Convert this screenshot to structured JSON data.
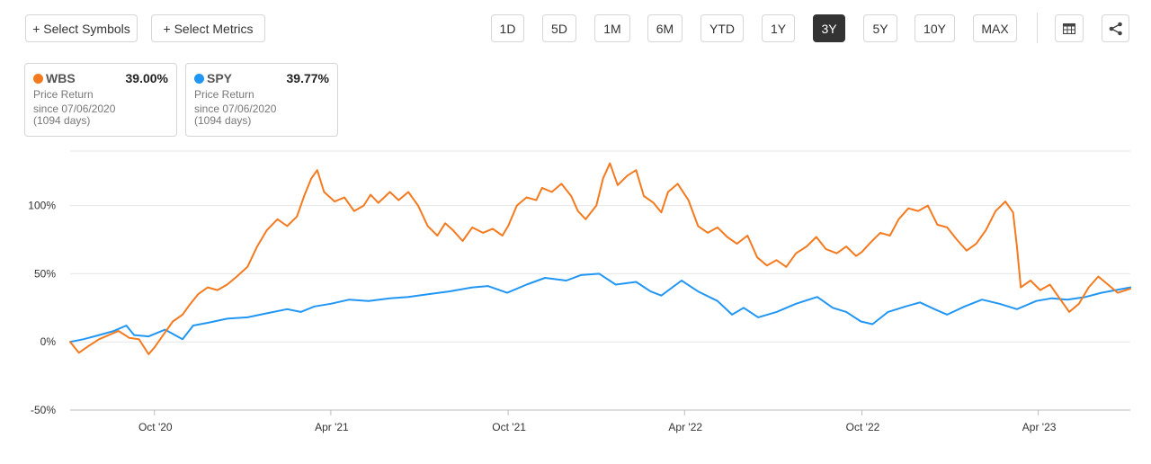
{
  "toolbar": {
    "select_symbols_label": "+ Select Symbols",
    "select_metrics_label": "+ Select Metrics",
    "ranges": [
      "1D",
      "5D",
      "1M",
      "6M",
      "YTD",
      "1Y",
      "3Y",
      "5Y",
      "10Y",
      "MAX"
    ],
    "active_range": "3Y",
    "table_icon": "table-icon",
    "share_icon": "share-icon"
  },
  "cards": [
    {
      "symbol": "WBS",
      "value": "39.00%",
      "metric": "Price Return",
      "since": "since 07/06/2020",
      "days": "(1094 days)",
      "color": "#f47a1f"
    },
    {
      "symbol": "SPY",
      "value": "39.77%",
      "metric": "Price Return",
      "since": "since 07/06/2020",
      "days": "(1094 days)",
      "color": "#2196f3"
    }
  ],
  "chart_data": {
    "type": "line",
    "x_range": [
      "2020-07-06",
      "2023-07-05"
    ],
    "ylim": [
      -50,
      140
    ],
    "y_ticks": [
      -50,
      0,
      50,
      100
    ],
    "y_tick_labels": [
      "-50%",
      "0%",
      "50%",
      "100%"
    ],
    "x_ticks": [
      "2020-10-01",
      "2021-04-01",
      "2021-10-01",
      "2022-04-01",
      "2022-10-01",
      "2023-04-01"
    ],
    "x_tick_labels": [
      "Oct '20",
      "Apr '21",
      "Oct '21",
      "Apr '22",
      "Oct '22",
      "Apr '23"
    ],
    "grid": "horizontal",
    "series": [
      {
        "name": "WBS",
        "color": "#f47a1f",
        "points": [
          [
            "2020-07-06",
            0
          ],
          [
            "2020-07-15",
            -8
          ],
          [
            "2020-07-25",
            -3
          ],
          [
            "2020-08-05",
            2
          ],
          [
            "2020-08-15",
            5
          ],
          [
            "2020-08-25",
            8
          ],
          [
            "2020-09-05",
            3
          ],
          [
            "2020-09-15",
            2
          ],
          [
            "2020-09-25",
            -9
          ],
          [
            "2020-10-01",
            -4
          ],
          [
            "2020-10-10",
            5
          ],
          [
            "2020-10-20",
            15
          ],
          [
            "2020-10-30",
            20
          ],
          [
            "2020-11-06",
            27
          ],
          [
            "2020-11-15",
            35
          ],
          [
            "2020-11-25",
            40
          ],
          [
            "2020-12-05",
            38
          ],
          [
            "2020-12-15",
            42
          ],
          [
            "2020-12-25",
            48
          ],
          [
            "2021-01-05",
            55
          ],
          [
            "2021-01-15",
            70
          ],
          [
            "2021-01-25",
            82
          ],
          [
            "2021-02-05",
            90
          ],
          [
            "2021-02-15",
            85
          ],
          [
            "2021-02-25",
            92
          ],
          [
            "2021-03-05",
            108
          ],
          [
            "2021-03-12",
            120
          ],
          [
            "2021-03-18",
            126
          ],
          [
            "2021-03-25",
            110
          ],
          [
            "2021-04-05",
            103
          ],
          [
            "2021-04-15",
            106
          ],
          [
            "2021-04-25",
            96
          ],
          [
            "2021-05-05",
            100
          ],
          [
            "2021-05-12",
            108
          ],
          [
            "2021-05-20",
            102
          ],
          [
            "2021-06-01",
            110
          ],
          [
            "2021-06-10",
            104
          ],
          [
            "2021-06-20",
            110
          ],
          [
            "2021-06-30",
            100
          ],
          [
            "2021-07-10",
            85
          ],
          [
            "2021-07-20",
            78
          ],
          [
            "2021-07-28",
            87
          ],
          [
            "2021-08-05",
            82
          ],
          [
            "2021-08-15",
            74
          ],
          [
            "2021-08-25",
            84
          ],
          [
            "2021-09-05",
            80
          ],
          [
            "2021-09-15",
            83
          ],
          [
            "2021-09-25",
            78
          ],
          [
            "2021-10-01",
            85
          ],
          [
            "2021-10-10",
            100
          ],
          [
            "2021-10-20",
            106
          ],
          [
            "2021-10-30",
            104
          ],
          [
            "2021-11-05",
            113
          ],
          [
            "2021-11-15",
            110
          ],
          [
            "2021-11-25",
            116
          ],
          [
            "2021-12-05",
            107
          ],
          [
            "2021-12-12",
            96
          ],
          [
            "2021-12-20",
            90
          ],
          [
            "2021-12-31",
            100
          ],
          [
            "2022-01-07",
            120
          ],
          [
            "2022-01-14",
            131
          ],
          [
            "2022-01-22",
            115
          ],
          [
            "2022-02-01",
            122
          ],
          [
            "2022-02-10",
            126
          ],
          [
            "2022-02-18",
            107
          ],
          [
            "2022-02-28",
            102
          ],
          [
            "2022-03-08",
            95
          ],
          [
            "2022-03-15",
            110
          ],
          [
            "2022-03-25",
            116
          ],
          [
            "2022-04-05",
            104
          ],
          [
            "2022-04-15",
            85
          ],
          [
            "2022-04-25",
            80
          ],
          [
            "2022-05-05",
            84
          ],
          [
            "2022-05-15",
            77
          ],
          [
            "2022-05-25",
            72
          ],
          [
            "2022-06-05",
            78
          ],
          [
            "2022-06-15",
            62
          ],
          [
            "2022-06-25",
            56
          ],
          [
            "2022-07-05",
            60
          ],
          [
            "2022-07-15",
            55
          ],
          [
            "2022-07-25",
            65
          ],
          [
            "2022-08-05",
            70
          ],
          [
            "2022-08-15",
            77
          ],
          [
            "2022-08-25",
            68
          ],
          [
            "2022-09-05",
            65
          ],
          [
            "2022-09-15",
            70
          ],
          [
            "2022-09-25",
            63
          ],
          [
            "2022-10-01",
            66
          ],
          [
            "2022-10-10",
            73
          ],
          [
            "2022-10-20",
            80
          ],
          [
            "2022-10-30",
            78
          ],
          [
            "2022-11-08",
            90
          ],
          [
            "2022-11-18",
            98
          ],
          [
            "2022-11-28",
            96
          ],
          [
            "2022-12-08",
            100
          ],
          [
            "2022-12-18",
            86
          ],
          [
            "2022-12-28",
            84
          ],
          [
            "2023-01-07",
            75
          ],
          [
            "2023-01-17",
            67
          ],
          [
            "2023-01-27",
            72
          ],
          [
            "2023-02-06",
            82
          ],
          [
            "2023-02-16",
            96
          ],
          [
            "2023-02-26",
            103
          ],
          [
            "2023-03-06",
            95
          ],
          [
            "2023-03-10",
            70
          ],
          [
            "2023-03-14",
            40
          ],
          [
            "2023-03-24",
            45
          ],
          [
            "2023-04-03",
            38
          ],
          [
            "2023-04-13",
            42
          ],
          [
            "2023-04-23",
            32
          ],
          [
            "2023-05-03",
            22
          ],
          [
            "2023-05-13",
            28
          ],
          [
            "2023-05-23",
            40
          ],
          [
            "2023-06-02",
            48
          ],
          [
            "2023-06-12",
            42
          ],
          [
            "2023-06-22",
            36
          ],
          [
            "2023-07-05",
            39
          ]
        ]
      },
      {
        "name": "SPY",
        "color": "#2196f3",
        "points": [
          [
            "2020-07-06",
            0
          ],
          [
            "2020-07-20",
            2
          ],
          [
            "2020-08-05",
            5
          ],
          [
            "2020-08-20",
            8
          ],
          [
            "2020-09-02",
            12
          ],
          [
            "2020-09-10",
            5
          ],
          [
            "2020-09-25",
            4
          ],
          [
            "2020-10-12",
            9
          ],
          [
            "2020-10-30",
            2
          ],
          [
            "2020-11-10",
            12
          ],
          [
            "2020-11-25",
            14
          ],
          [
            "2020-12-15",
            17
          ],
          [
            "2021-01-05",
            18
          ],
          [
            "2021-01-25",
            21
          ],
          [
            "2021-02-15",
            24
          ],
          [
            "2021-03-01",
            22
          ],
          [
            "2021-03-15",
            26
          ],
          [
            "2021-04-01",
            28
          ],
          [
            "2021-04-20",
            31
          ],
          [
            "2021-05-10",
            30
          ],
          [
            "2021-06-01",
            32
          ],
          [
            "2021-06-20",
            33
          ],
          [
            "2021-07-10",
            35
          ],
          [
            "2021-08-01",
            37
          ],
          [
            "2021-08-25",
            40
          ],
          [
            "2021-09-10",
            41
          ],
          [
            "2021-09-30",
            36
          ],
          [
            "2021-10-20",
            42
          ],
          [
            "2021-11-08",
            47
          ],
          [
            "2021-11-30",
            45
          ],
          [
            "2021-12-15",
            49
          ],
          [
            "2022-01-03",
            50
          ],
          [
            "2022-01-20",
            42
          ],
          [
            "2022-02-10",
            44
          ],
          [
            "2022-02-25",
            37
          ],
          [
            "2022-03-08",
            34
          ],
          [
            "2022-03-29",
            45
          ],
          [
            "2022-04-15",
            37
          ],
          [
            "2022-05-05",
            30
          ],
          [
            "2022-05-20",
            20
          ],
          [
            "2022-06-01",
            25
          ],
          [
            "2022-06-16",
            18
          ],
          [
            "2022-07-05",
            22
          ],
          [
            "2022-07-25",
            28
          ],
          [
            "2022-08-16",
            33
          ],
          [
            "2022-09-01",
            25
          ],
          [
            "2022-09-15",
            22
          ],
          [
            "2022-09-30",
            15
          ],
          [
            "2022-10-12",
            13
          ],
          [
            "2022-10-28",
            22
          ],
          [
            "2022-11-15",
            26
          ],
          [
            "2022-11-30",
            29
          ],
          [
            "2022-12-15",
            24
          ],
          [
            "2022-12-28",
            20
          ],
          [
            "2023-01-15",
            26
          ],
          [
            "2023-02-02",
            31
          ],
          [
            "2023-02-20",
            28
          ],
          [
            "2023-03-10",
            24
          ],
          [
            "2023-03-30",
            30
          ],
          [
            "2023-04-15",
            32
          ],
          [
            "2023-05-01",
            31
          ],
          [
            "2023-05-20",
            33
          ],
          [
            "2023-06-05",
            36
          ],
          [
            "2023-06-20",
            38
          ],
          [
            "2023-07-05",
            40
          ]
        ]
      }
    ]
  }
}
